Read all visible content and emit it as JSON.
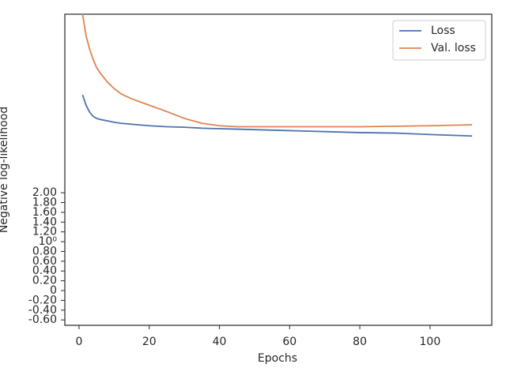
{
  "chart_data": {
    "type": "line",
    "x_label": "Epochs",
    "y_label": "Negative log-likelihood",
    "x": [
      1,
      2,
      3,
      4,
      5,
      6,
      8,
      10,
      12,
      15,
      20,
      25,
      30,
      35,
      40,
      45,
      50,
      60,
      70,
      80,
      90,
      100,
      112
    ],
    "series": [
      {
        "name": "Loss",
        "color": "#4c72b0",
        "values": [
          4.0,
          3.79,
          3.65,
          3.56,
          3.52,
          3.5,
          3.47,
          3.44,
          3.42,
          3.4,
          3.37,
          3.35,
          3.34,
          3.32,
          3.31,
          3.3,
          3.29,
          3.27,
          3.25,
          3.23,
          3.22,
          3.19,
          3.16
        ]
      },
      {
        "name": "Val. loss",
        "color": "#dd8452",
        "values": [
          5.65,
          5.21,
          4.94,
          4.73,
          4.56,
          4.45,
          4.27,
          4.13,
          4.02,
          3.92,
          3.79,
          3.66,
          3.52,
          3.42,
          3.37,
          3.35,
          3.35,
          3.35,
          3.35,
          3.35,
          3.36,
          3.37,
          3.39
        ]
      }
    ],
    "xlim": [
      -4.05,
      117.6
    ],
    "ylim": [
      -0.71,
      5.65
    ],
    "xticks": [
      0,
      20,
      40,
      60,
      80,
      100
    ],
    "yticks": [
      {
        "value": -0.6,
        "label": "-0.60"
      },
      {
        "value": -0.4,
        "label": "-0.40"
      },
      {
        "value": -0.2,
        "label": "-0.20"
      },
      0,
      {
        "value": 0.2,
        "label": "0.20"
      },
      {
        "value": 0.4,
        "label": "0.40"
      },
      {
        "value": 0.6,
        "label": "0.60"
      },
      {
        "value": 0.8,
        "label": "0.80"
      },
      {
        "value": 1,
        "label": "10⁰"
      },
      {
        "value": 1.2,
        "label": "1.20"
      },
      {
        "value": 1.4,
        "label": "1.40"
      },
      {
        "value": 1.6,
        "label": "1.60"
      },
      {
        "value": 1.8,
        "label": "1.80"
      },
      {
        "value": 2,
        "label": "2.00"
      }
    ],
    "legend": "upper right"
  }
}
